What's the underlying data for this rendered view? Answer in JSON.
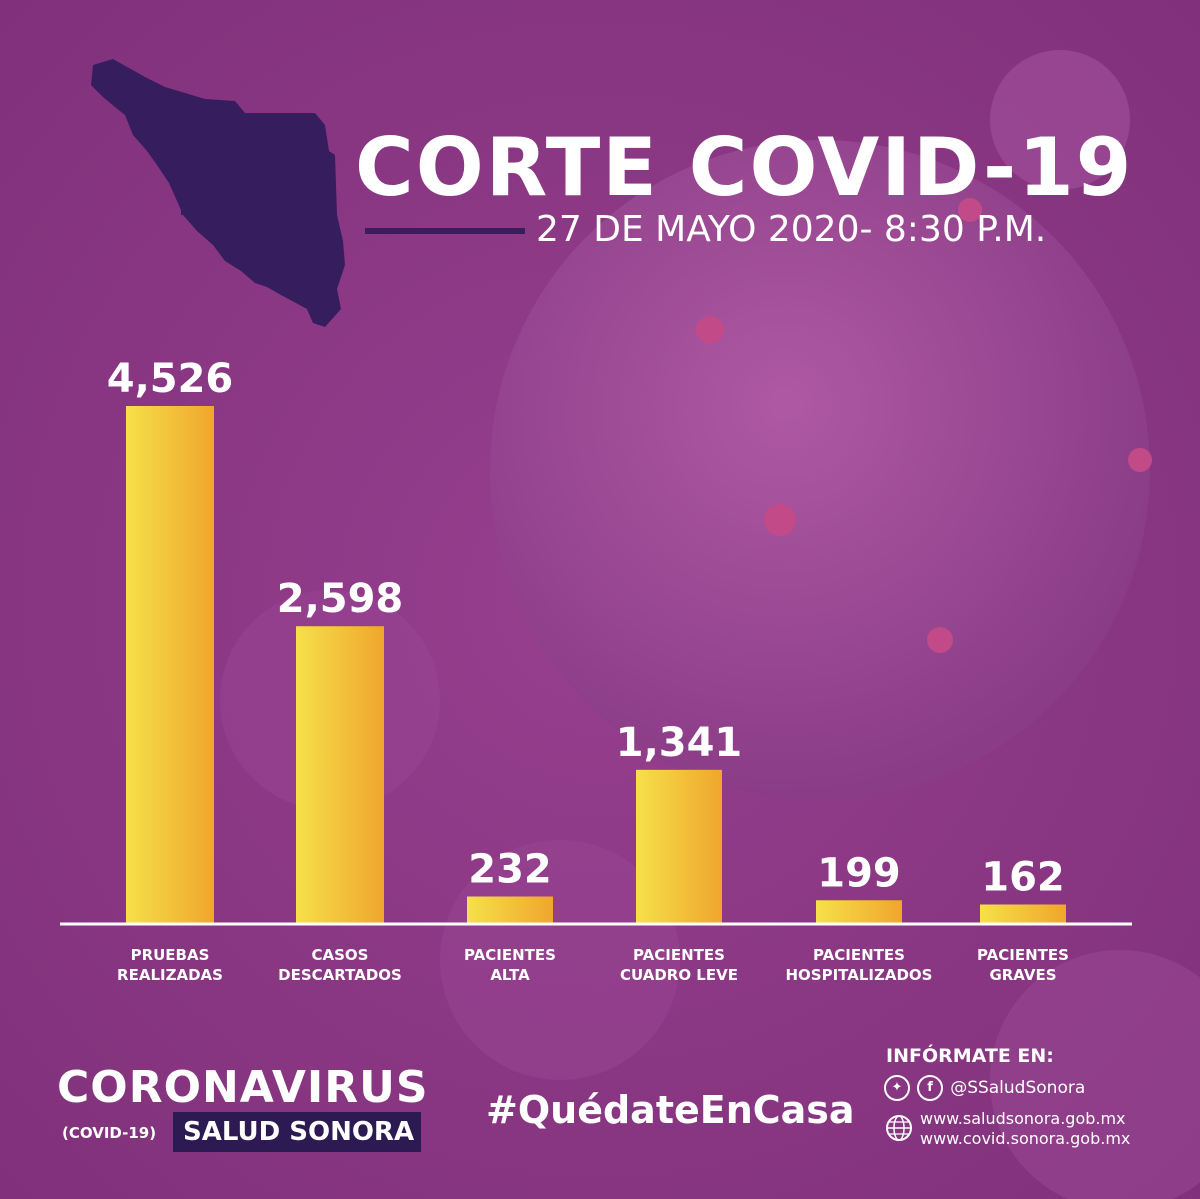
{
  "header": {
    "title": "CORTE  COVID-19",
    "subtitle": "27 DE MAYO 2020- 8:30 P.M."
  },
  "colors": {
    "background": "#8d3a86",
    "bar_light": "#f6e04a",
    "bar_dark": "#f0a62c",
    "dark_purple": "#2d1a52",
    "text": "#ffffff"
  },
  "chart_data": {
    "type": "bar",
    "categories": [
      [
        "PRUEBAS",
        "REALIZADAS"
      ],
      [
        "CASOS",
        "DESCARTADOS"
      ],
      [
        "PACIENTES",
        "ALTA"
      ],
      [
        "PACIENTES",
        "CUADRO LEVE"
      ],
      [
        "PACIENTES",
        "HOSPITALIZADOS"
      ],
      [
        "PACIENTES",
        "GRAVES"
      ]
    ],
    "values": [
      4526,
      2598,
      232,
      1341,
      199,
      162
    ],
    "value_labels": [
      "4,526",
      "2,598",
      "232",
      "1,341",
      "199",
      "162"
    ],
    "ylim": [
      0,
      4526
    ],
    "grid": false,
    "legend": "none"
  },
  "footer": {
    "brand_main": "CORONAVIRUS",
    "brand_sub": "(COVID-19)",
    "brand_box": "SALUD SONORA",
    "hashtag": "#QuédateEnCasa",
    "info_title": "INFÓRMATE EN:",
    "twitter_icon": "twitter-icon",
    "facebook_icon": "facebook-icon",
    "handle": "@SSaludSonora",
    "globe_icon": "globe-icon",
    "web1": "www.saludsonora.gob.mx",
    "web2": "www.covid.sonora.gob.mx"
  }
}
